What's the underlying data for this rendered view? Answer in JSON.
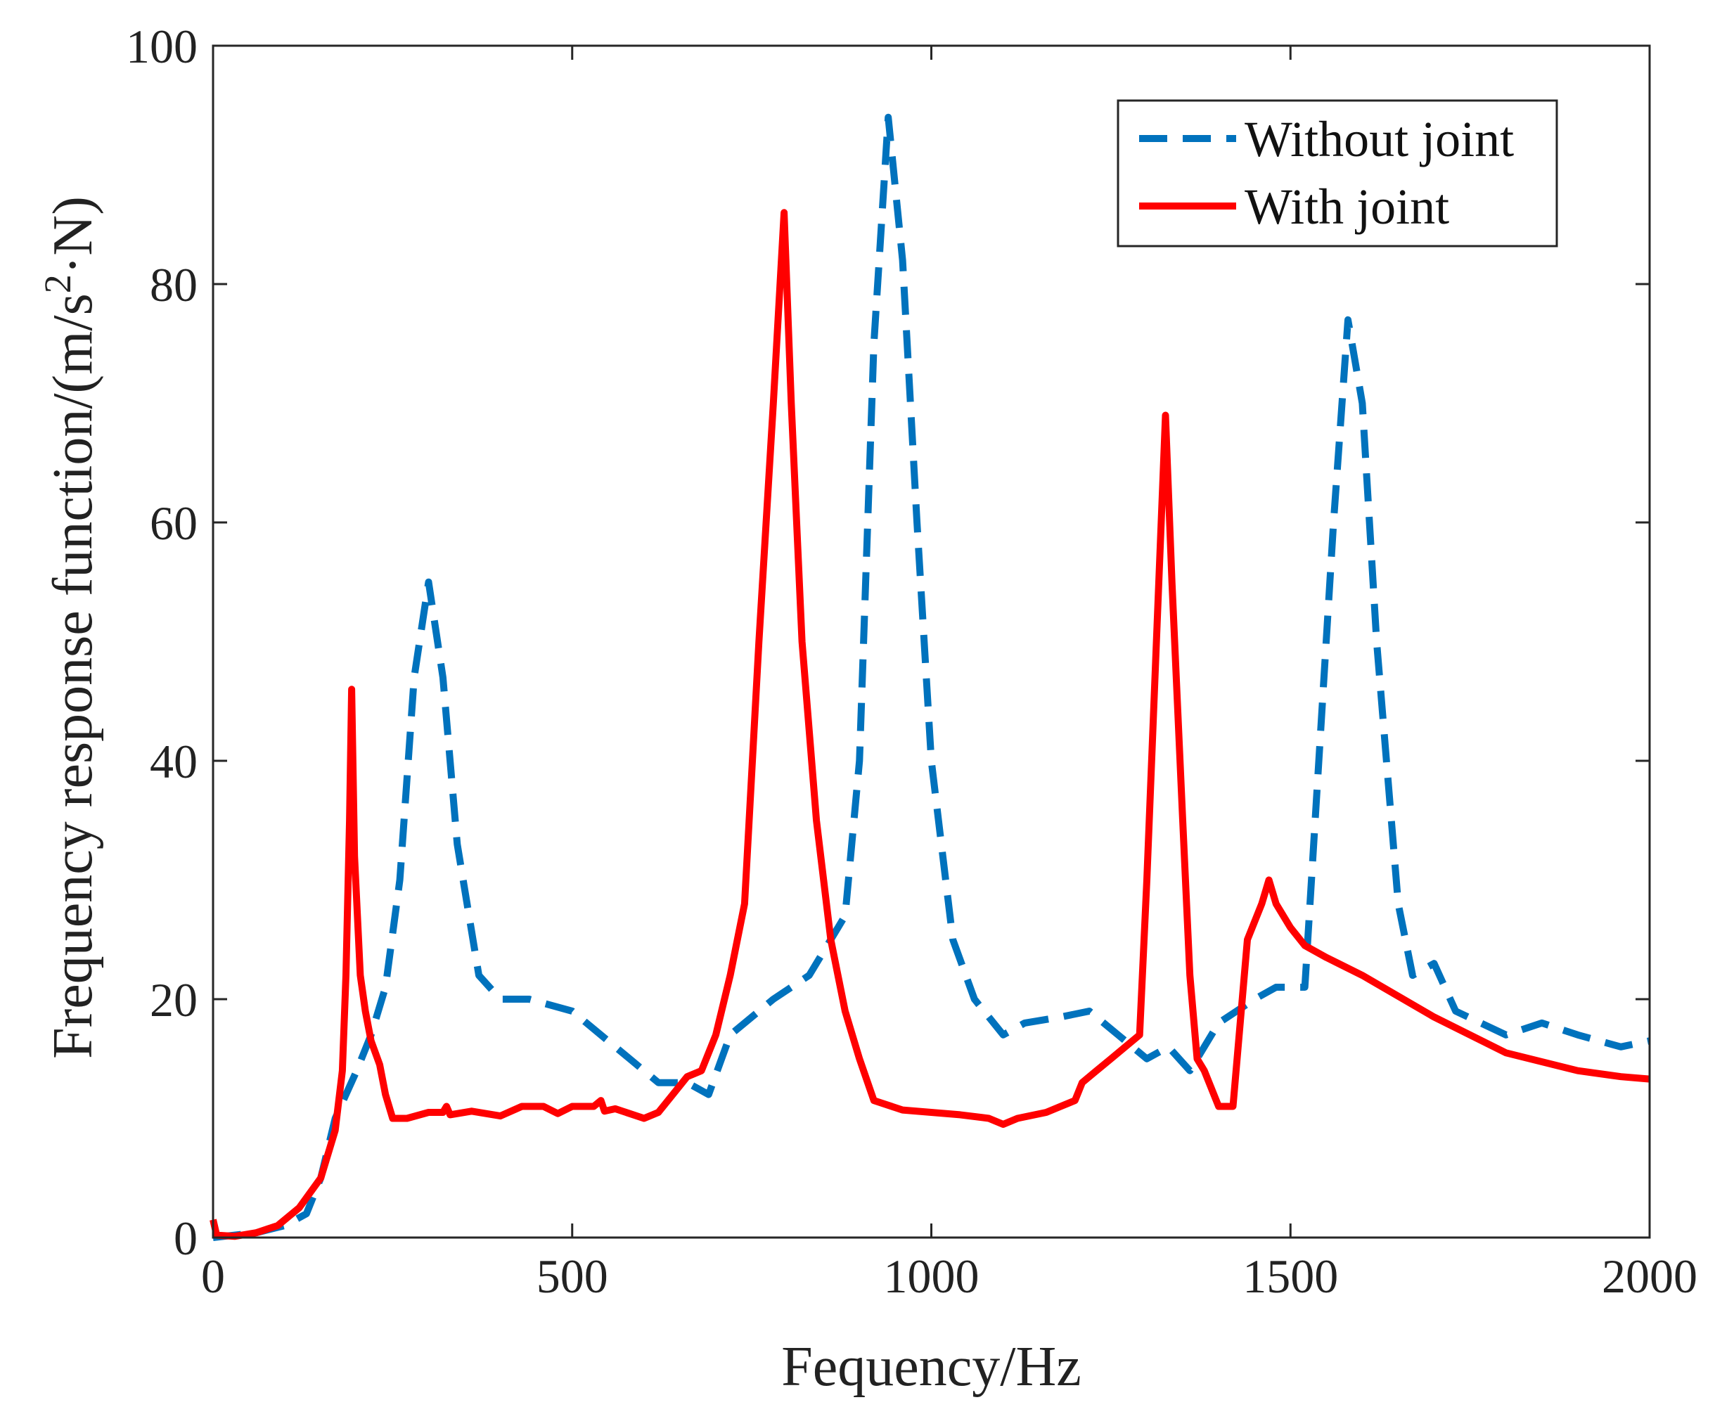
{
  "chart_data": {
    "type": "line",
    "title": "",
    "xlabel": "Fequency/Hz",
    "ylabel_parts": [
      "Frequency response function/(m/s",
      "2",
      "·N)"
    ],
    "xlim": [
      0,
      2000
    ],
    "ylim": [
      0,
      100
    ],
    "xticks": [
      0,
      500,
      1000,
      1500,
      2000
    ],
    "yticks": [
      0,
      20,
      40,
      60,
      80,
      100
    ],
    "xtick_labels": [
      "0",
      "500",
      "1000",
      "1500",
      "2000"
    ],
    "ytick_labels": [
      "0",
      "20",
      "40",
      "60",
      "80",
      "100"
    ],
    "grid": false,
    "legend_position": "top-right",
    "series": [
      {
        "name": "Without joint",
        "color": "#0072BD",
        "style": "dashed",
        "points": [
          [
            0,
            0
          ],
          [
            60,
            0.4
          ],
          [
            100,
            1
          ],
          [
            130,
            2
          ],
          [
            150,
            5
          ],
          [
            170,
            10
          ],
          [
            200,
            14
          ],
          [
            220,
            17
          ],
          [
            240,
            21
          ],
          [
            260,
            30
          ],
          [
            280,
            47
          ],
          [
            300,
            55
          ],
          [
            320,
            47
          ],
          [
            340,
            33
          ],
          [
            370,
            22
          ],
          [
            400,
            20
          ],
          [
            440,
            20
          ],
          [
            500,
            19
          ],
          [
            560,
            16
          ],
          [
            620,
            13
          ],
          [
            660,
            13
          ],
          [
            690,
            12
          ],
          [
            720,
            17
          ],
          [
            780,
            20
          ],
          [
            830,
            22
          ],
          [
            870,
            26
          ],
          [
            880,
            27
          ],
          [
            900,
            40
          ],
          [
            920,
            75
          ],
          [
            940,
            94
          ],
          [
            960,
            82
          ],
          [
            980,
            60
          ],
          [
            1000,
            40
          ],
          [
            1030,
            25
          ],
          [
            1060,
            20
          ],
          [
            1100,
            17
          ],
          [
            1130,
            18
          ],
          [
            1180,
            18.5
          ],
          [
            1220,
            19
          ],
          [
            1260,
            17
          ],
          [
            1300,
            15
          ],
          [
            1330,
            16
          ],
          [
            1360,
            14
          ],
          [
            1400,
            18
          ],
          [
            1450,
            20
          ],
          [
            1480,
            21
          ],
          [
            1520,
            21
          ],
          [
            1560,
            60
          ],
          [
            1580,
            77
          ],
          [
            1600,
            70
          ],
          [
            1620,
            50
          ],
          [
            1650,
            28
          ],
          [
            1670,
            22
          ],
          [
            1700,
            23
          ],
          [
            1730,
            19
          ],
          [
            1800,
            17
          ],
          [
            1850,
            18
          ],
          [
            1900,
            17
          ],
          [
            1960,
            16
          ],
          [
            2000,
            16.5
          ]
        ]
      },
      {
        "name": "With joint",
        "color": "#FF0000",
        "style": "solid",
        "points": [
          [
            0,
            1.5
          ],
          [
            5,
            0.2
          ],
          [
            30,
            0.1
          ],
          [
            60,
            0.4
          ],
          [
            90,
            1
          ],
          [
            120,
            2.5
          ],
          [
            150,
            5
          ],
          [
            170,
            9
          ],
          [
            180,
            14
          ],
          [
            185,
            22
          ],
          [
            190,
            35
          ],
          [
            193,
            46
          ],
          [
            197,
            32
          ],
          [
            205,
            22
          ],
          [
            212,
            19
          ],
          [
            220,
            16.5
          ],
          [
            232,
            14.5
          ],
          [
            240,
            12
          ],
          [
            250,
            10
          ],
          [
            270,
            10
          ],
          [
            300,
            10.5
          ],
          [
            320,
            10.5
          ],
          [
            325,
            11
          ],
          [
            330,
            10.3
          ],
          [
            360,
            10.6
          ],
          [
            400,
            10.2
          ],
          [
            430,
            11
          ],
          [
            460,
            11
          ],
          [
            480,
            10.4
          ],
          [
            500,
            11
          ],
          [
            530,
            11
          ],
          [
            540,
            11.5
          ],
          [
            545,
            10.6
          ],
          [
            560,
            10.8
          ],
          [
            600,
            10
          ],
          [
            620,
            10.5
          ],
          [
            640,
            12
          ],
          [
            660,
            13.5
          ],
          [
            680,
            14
          ],
          [
            700,
            17
          ],
          [
            720,
            22
          ],
          [
            740,
            28
          ],
          [
            760,
            50
          ],
          [
            780,
            70
          ],
          [
            795,
            86
          ],
          [
            805,
            70
          ],
          [
            820,
            50
          ],
          [
            840,
            35
          ],
          [
            860,
            25
          ],
          [
            880,
            19
          ],
          [
            900,
            15
          ],
          [
            920,
            11.5
          ],
          [
            960,
            10.7
          ],
          [
            1000,
            10.5
          ],
          [
            1040,
            10.3
          ],
          [
            1080,
            10
          ],
          [
            1100,
            9.5
          ],
          [
            1120,
            10
          ],
          [
            1160,
            10.5
          ],
          [
            1180,
            11
          ],
          [
            1200,
            11.5
          ],
          [
            1210,
            13
          ],
          [
            1230,
            14
          ],
          [
            1250,
            15
          ],
          [
            1270,
            16
          ],
          [
            1290,
            17
          ],
          [
            1300,
            30
          ],
          [
            1310,
            45
          ],
          [
            1320,
            60
          ],
          [
            1326,
            69
          ],
          [
            1335,
            55
          ],
          [
            1350,
            35
          ],
          [
            1360,
            22
          ],
          [
            1370,
            15
          ],
          [
            1380,
            14
          ],
          [
            1400,
            11
          ],
          [
            1420,
            11
          ],
          [
            1440,
            25
          ],
          [
            1460,
            28
          ],
          [
            1470,
            30
          ],
          [
            1480,
            28
          ],
          [
            1500,
            26
          ],
          [
            1520,
            24.5
          ],
          [
            1550,
            23.5
          ],
          [
            1600,
            22
          ],
          [
            1700,
            18.5
          ],
          [
            1800,
            15.5
          ],
          [
            1900,
            14
          ],
          [
            1960,
            13.5
          ],
          [
            2000,
            13.3
          ]
        ]
      }
    ]
  }
}
